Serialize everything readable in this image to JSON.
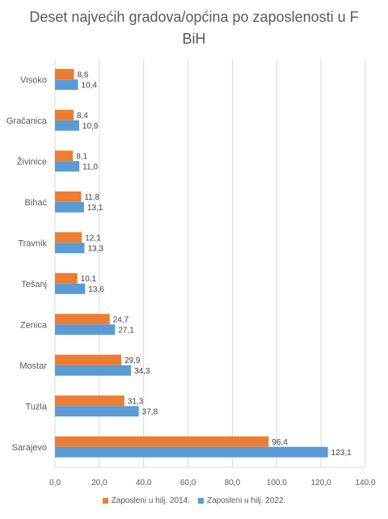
{
  "chart_data": {
    "type": "bar",
    "orientation": "horizontal",
    "title": "Deset najvećih gradova/općina po zaposlenosti u F BiH",
    "categories": [
      "Visoko",
      "Gračanica",
      "Živinice",
      "Bihać",
      "Travnik",
      "Tešanj",
      "Zenica",
      "Mostar",
      "Tuzla",
      "Sarajevo"
    ],
    "series": [
      {
        "name": "Zaposleni u hilj. 2014.",
        "color": "#ED7D31",
        "values": [
          8.6,
          8.4,
          8.1,
          11.8,
          12.1,
          10.1,
          24.7,
          29.9,
          31.3,
          96.4
        ],
        "labels": [
          "8,6",
          "8,4",
          "8,1",
          "11,8",
          "12,1",
          "10,1",
          "24,7",
          "29,9",
          "31,3",
          "96,4"
        ]
      },
      {
        "name": "Zaposleni u hilj. 2022.",
        "color": "#5B9BD5",
        "values": [
          10.4,
          10.9,
          11.0,
          13.1,
          13.3,
          13.6,
          27.1,
          34.3,
          37.8,
          123.1
        ],
        "labels": [
          "10,4",
          "10,9",
          "11,0",
          "13,1",
          "13,3",
          "13,6",
          "27,1",
          "34,3",
          "37,8",
          "123,1"
        ]
      }
    ],
    "xlim": [
      0,
      140
    ],
    "xticks": [
      0,
      20,
      40,
      60,
      80,
      100,
      120,
      140
    ],
    "xtick_labels": [
      "0,0",
      "20,0",
      "40,0",
      "60,0",
      "80,0",
      "100,0",
      "120,0",
      "140,0"
    ],
    "grid": true,
    "legend_position": "bottom"
  }
}
